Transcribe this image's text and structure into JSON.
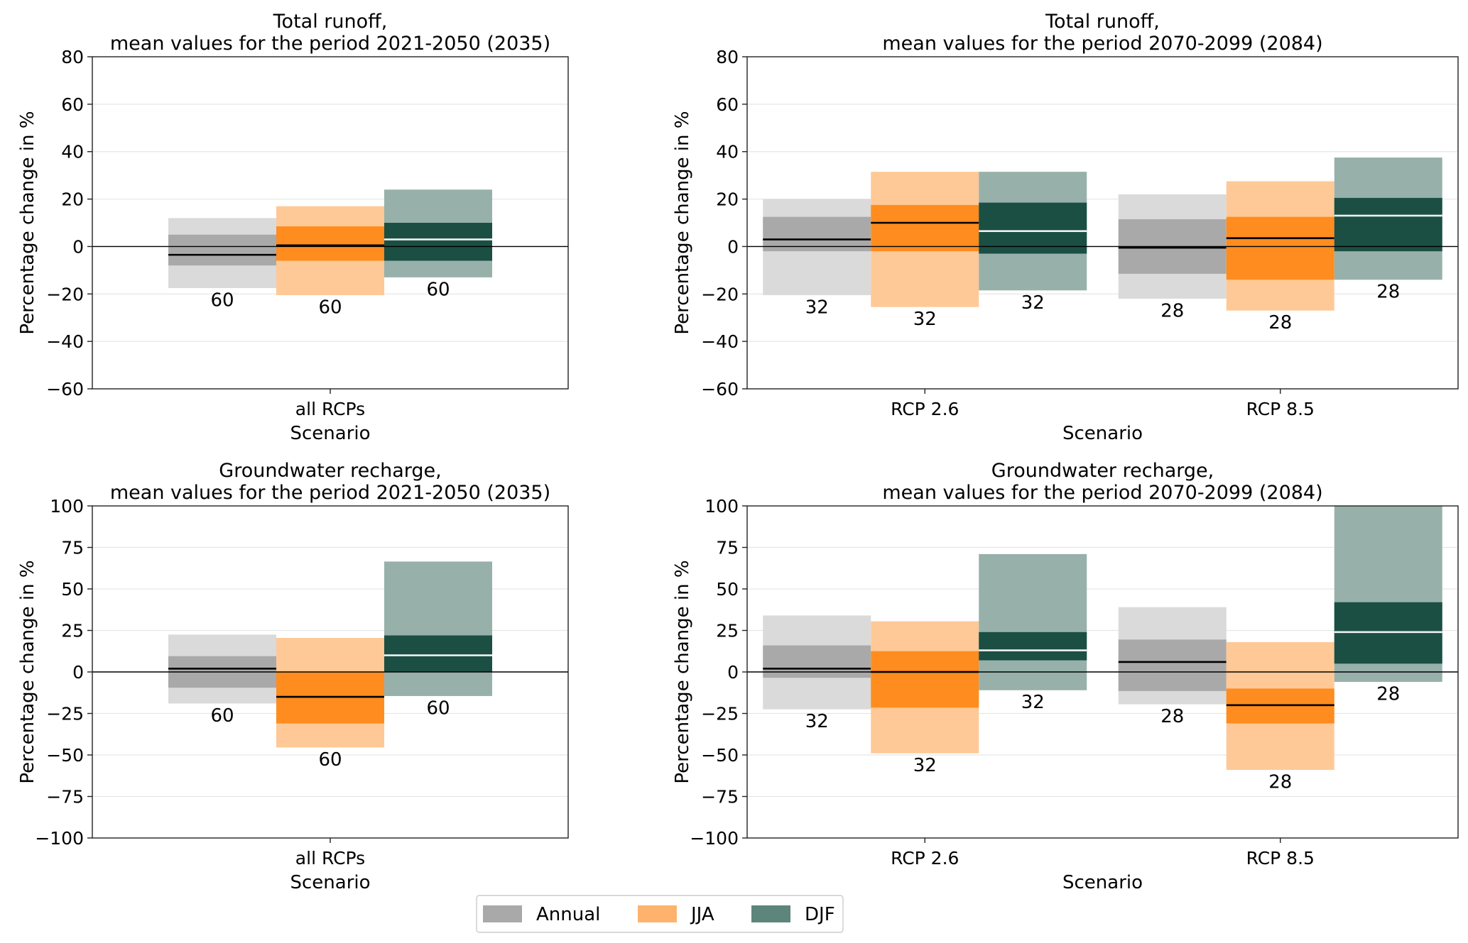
{
  "colors": {
    "Annual": {
      "light": "#dadada",
      "mid": "#a9a9a9",
      "median": "#000000",
      "legend": "#a9a9a9"
    },
    "JJA": {
      "light": "#fec996",
      "mid": "#ff8c1e",
      "median": "#000000",
      "legend": "#fdb36d"
    },
    "DJF": {
      "light": "#97b1aa",
      "mid": "#1b4f43",
      "median": "#f0f0f0",
      "legend": "#5d857b"
    }
  },
  "legend": {
    "placement": "bottom-center",
    "entries": [
      "Annual",
      "JJA",
      "DJF"
    ]
  },
  "chart_data": [
    {
      "type": "bar",
      "title": "Total runoff,\nmean values for the period 2021-2050 (2035)",
      "xlabel": "Scenario",
      "ylabel": "Percentage change in %",
      "ylim": [
        -60,
        80
      ],
      "yticks": [
        -60,
        -40,
        -20,
        0,
        20,
        40,
        60,
        80
      ],
      "ytick_labels": [
        "−60",
        "−40",
        "−20",
        "0",
        "20",
        "40",
        "60",
        "80"
      ],
      "grid": true,
      "categories": [
        "all RCPs"
      ],
      "series": [
        {
          "name": "Annual",
          "groups": [
            {
              "outer": [
                -17.5,
                12
              ],
              "inner": [
                -8,
                5
              ],
              "median": -3.5,
              "count": "60"
            }
          ]
        },
        {
          "name": "JJA",
          "groups": [
            {
              "outer": [
                -20.5,
                17
              ],
              "inner": [
                -6,
                8.5
              ],
              "median": 0.5,
              "count": "60"
            }
          ]
        },
        {
          "name": "DJF",
          "groups": [
            {
              "outer": [
                -13,
                24
              ],
              "inner": [
                -6,
                10
              ],
              "median": 3,
              "count": "60"
            }
          ]
        }
      ]
    },
    {
      "type": "bar",
      "title": "Total runoff,\nmean values for the period 2070-2099 (2084)",
      "xlabel": "Scenario",
      "ylabel": "Percentage change in %",
      "ylim": [
        -60,
        80
      ],
      "yticks": [
        -60,
        -40,
        -20,
        0,
        20,
        40,
        60,
        80
      ],
      "ytick_labels": [
        "−60",
        "−40",
        "−20",
        "0",
        "20",
        "40",
        "60",
        "80"
      ],
      "grid": true,
      "categories": [
        "RCP 2.6",
        "RCP 8.5"
      ],
      "series": [
        {
          "name": "Annual",
          "groups": [
            {
              "outer": [
                -20.5,
                20
              ],
              "inner": [
                -2,
                12.5
              ],
              "median": 3,
              "count": "32"
            },
            {
              "outer": [
                -22,
                22
              ],
              "inner": [
                -11.5,
                11.5
              ],
              "median": -0.5,
              "count": "28"
            }
          ]
        },
        {
          "name": "JJA",
          "groups": [
            {
              "outer": [
                -25.5,
                31.5
              ],
              "inner": [
                -2,
                17.5
              ],
              "median": 10,
              "count": "32"
            },
            {
              "outer": [
                -27,
                27.5
              ],
              "inner": [
                -14,
                12.5
              ],
              "median": 3.5,
              "count": "28"
            }
          ]
        },
        {
          "name": "DJF",
          "groups": [
            {
              "outer": [
                -18.5,
                31.5
              ],
              "inner": [
                -3,
                18.5
              ],
              "median": 6.5,
              "count": "32"
            },
            {
              "outer": [
                -14,
                37.5
              ],
              "inner": [
                -2,
                20.5
              ],
              "median": 13,
              "count": "28"
            }
          ]
        }
      ]
    },
    {
      "type": "bar",
      "title": "Groundwater recharge,\nmean values for the period 2021-2050 (2035)",
      "xlabel": "Scenario",
      "ylabel": "Percentage change in %",
      "ylim": [
        -100,
        100
      ],
      "yticks": [
        -100,
        -75,
        -50,
        -25,
        0,
        25,
        50,
        75,
        100
      ],
      "ytick_labels": [
        "−100",
        "−75",
        "−50",
        "−25",
        "0",
        "25",
        "50",
        "75",
        "100"
      ],
      "grid": true,
      "categories": [
        "all RCPs"
      ],
      "series": [
        {
          "name": "Annual",
          "groups": [
            {
              "outer": [
                -19,
                22.5
              ],
              "inner": [
                -9.5,
                9.5
              ],
              "median": 2,
              "count": "60"
            }
          ]
        },
        {
          "name": "JJA",
          "groups": [
            {
              "outer": [
                -45.5,
                20.5
              ],
              "inner": [
                -31,
                0
              ],
              "median": -15,
              "count": "60"
            }
          ]
        },
        {
          "name": "DJF",
          "groups": [
            {
              "outer": [
                -14.5,
                66.5
              ],
              "inner": [
                0,
                22
              ],
              "median": 10,
              "count": "60"
            }
          ]
        }
      ]
    },
    {
      "type": "bar",
      "title": "Groundwater recharge,\nmean values for the period 2070-2099 (2084)",
      "xlabel": "Scenario",
      "ylabel": "Percentage change in %",
      "ylim": [
        -100,
        100
      ],
      "yticks": [
        -100,
        -75,
        -50,
        -25,
        0,
        25,
        50,
        75,
        100
      ],
      "ytick_labels": [
        "−100",
        "−75",
        "−50",
        "−25",
        "0",
        "25",
        "50",
        "75",
        "100"
      ],
      "grid": true,
      "categories": [
        "RCP 2.6",
        "RCP 8.5"
      ],
      "series": [
        {
          "name": "Annual",
          "groups": [
            {
              "outer": [
                -22.5,
                34
              ],
              "inner": [
                -3.5,
                16
              ],
              "median": 2,
              "count": "32"
            },
            {
              "outer": [
                -19.5,
                39
              ],
              "inner": [
                -11.5,
                19.5
              ],
              "median": 6,
              "count": "28"
            }
          ]
        },
        {
          "name": "JJA",
          "groups": [
            {
              "outer": [
                -49,
                30.5
              ],
              "inner": [
                -21.5,
                12.5
              ],
              "median": 0,
              "count": "32"
            },
            {
              "outer": [
                -59,
                18
              ],
              "inner": [
                -31,
                -10
              ],
              "median": -20,
              "count": "28"
            }
          ]
        },
        {
          "name": "DJF",
          "groups": [
            {
              "outer": [
                -11,
                71
              ],
              "inner": [
                7,
                24
              ],
              "median": 13,
              "count": "32"
            },
            {
              "outer": [
                -6,
                100
              ],
              "inner": [
                5,
                42
              ],
              "median": 24,
              "count": "28"
            }
          ]
        }
      ]
    }
  ]
}
